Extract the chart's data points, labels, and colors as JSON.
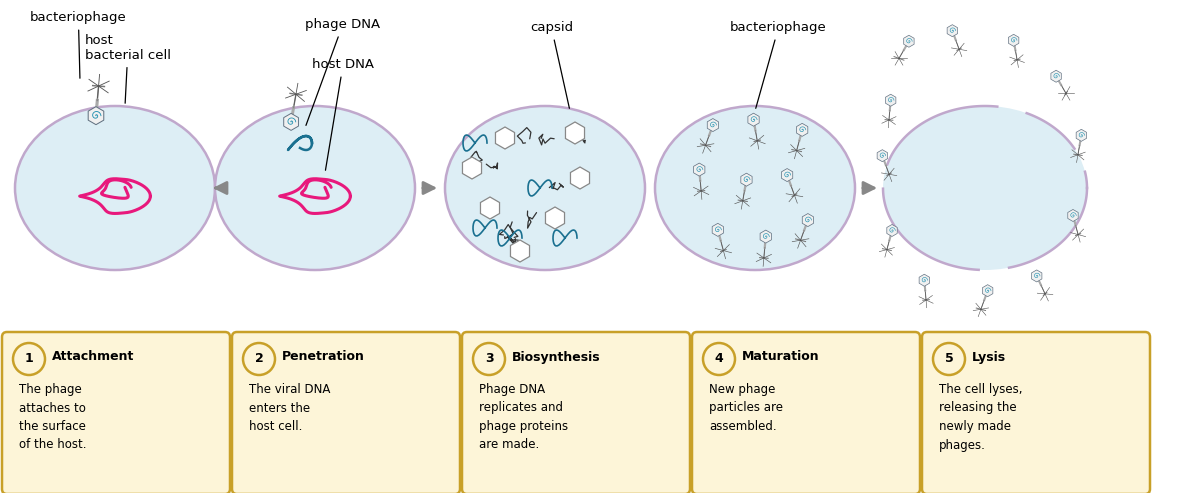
{
  "background_color": "#ffffff",
  "cell_fill": "#ddeef5",
  "cell_edge": "#c0a8cc",
  "arrow_color": "#888888",
  "box_fill": "#fdf5d8",
  "box_edge": "#c8a028",
  "dna_color": "#e8187c",
  "phage_dna_color": "#1a7090",
  "steps": [
    {
      "number": "1",
      "title": "Attachment",
      "body": "The phage\nattaches to\nthe surface\nof the host."
    },
    {
      "number": "2",
      "title": "Penetration",
      "body": "The viral DNA\nenters the\nhost cell."
    },
    {
      "number": "3",
      "title": "Biosynthesis",
      "body": "Phage DNA\nreplicates and\nphage proteins\nare made."
    },
    {
      "number": "4",
      "title": "Maturation",
      "body": "New phage\nparticles are\nassembled."
    },
    {
      "number": "5",
      "title": "Lysis",
      "body": "The cell lyses,\nreleasing the\nnewly made\nphages."
    }
  ]
}
